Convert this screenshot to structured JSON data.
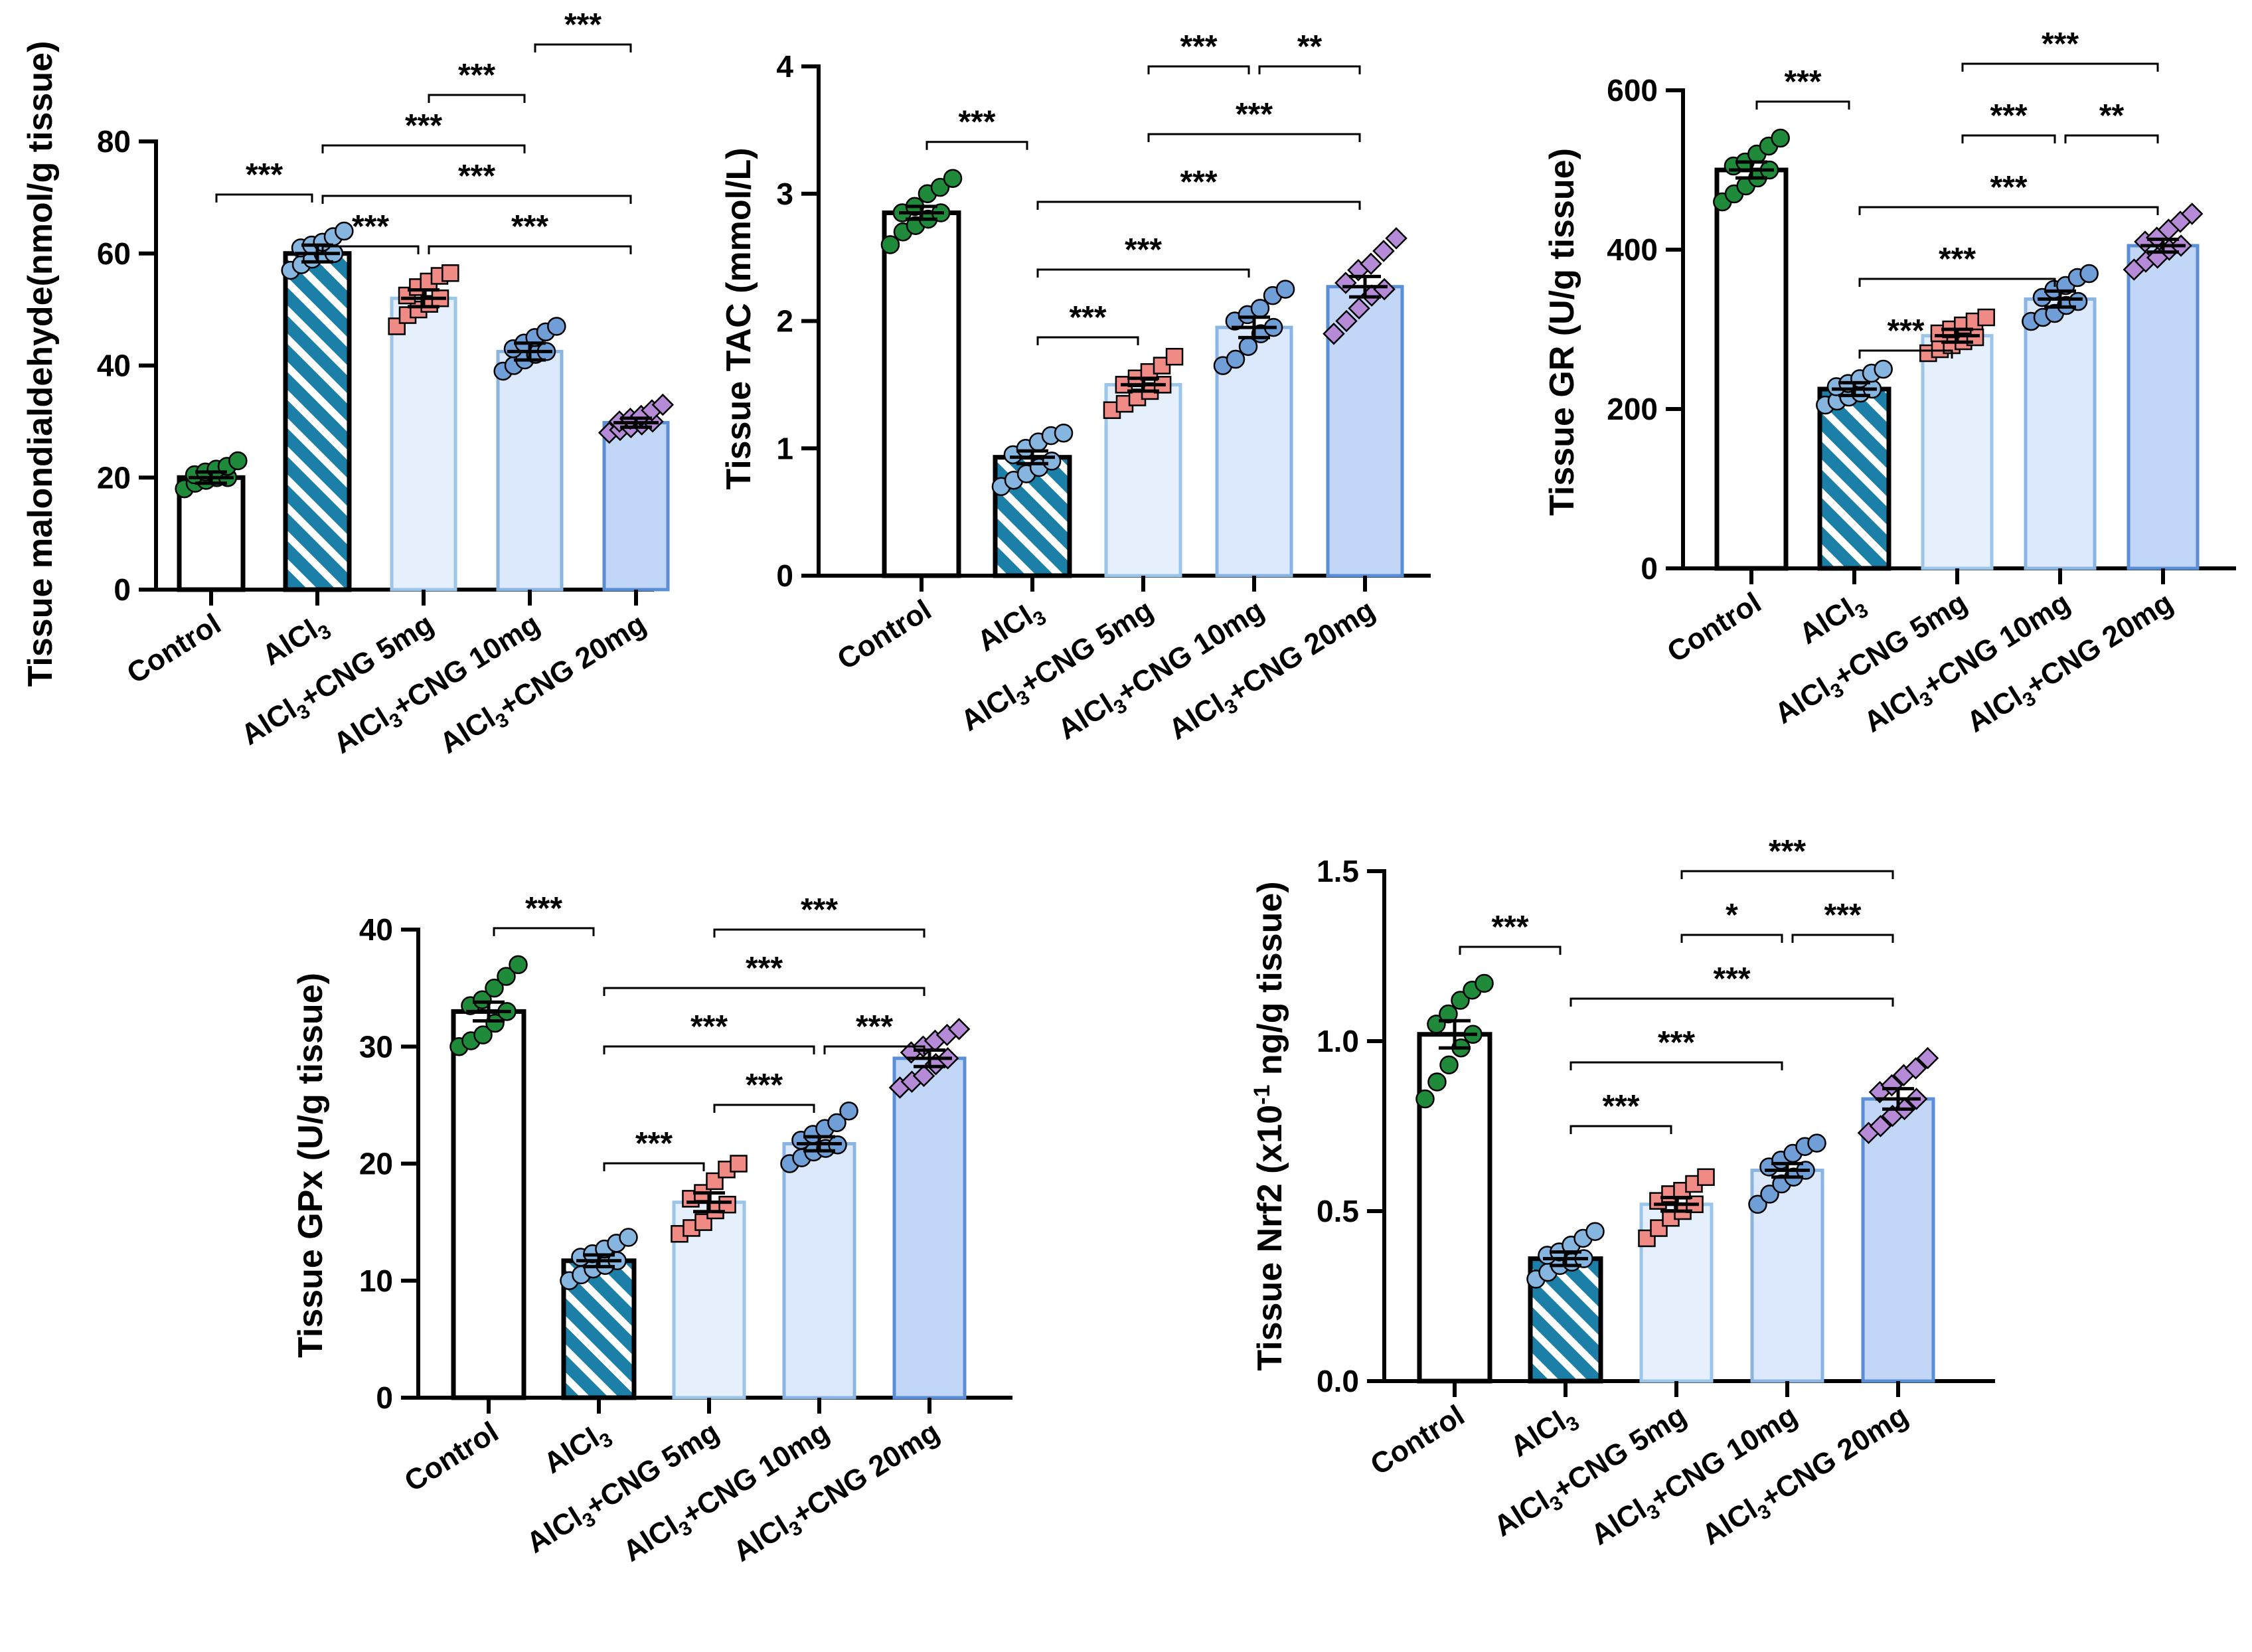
{
  "chart_data": [
    {
      "type": "bar",
      "ylabel": "Tissue malondialdehyde(nmol/g tissue)",
      "ylim": [
        0,
        80
      ],
      "yticks": [
        0,
        20,
        40,
        60,
        80
      ],
      "categories": [
        "Control",
        "AlCl3",
        "AlCl3+CNG 5mg",
        "AlCl3+CNG 10mg",
        "AlCl3+CNG 20mg"
      ],
      "values": [
        20,
        60,
        52,
        42.5,
        29.8
      ],
      "errors": [
        1.0,
        1.5,
        1.5,
        1.5,
        0.8
      ],
      "points": [
        [
          18,
          19,
          19.5,
          20,
          20,
          20.5,
          21,
          21.5,
          22,
          23
        ],
        [
          57,
          58,
          59,
          60,
          60,
          61,
          61.5,
          62,
          63,
          64
        ],
        [
          47,
          49,
          50,
          51,
          52,
          52.5,
          54,
          55,
          56,
          56.5
        ],
        [
          39,
          40,
          41,
          42,
          42.5,
          43,
          44,
          45,
          46,
          47
        ],
        [
          28,
          28.5,
          29,
          29.5,
          30,
          30,
          30.5,
          31,
          32,
          33
        ]
      ],
      "significance": [
        {
          "from": 0,
          "to": 1,
          "label": "***"
        },
        {
          "from": 1,
          "to": 2,
          "label": "***"
        },
        {
          "from": 2,
          "to": 4,
          "label": "***"
        },
        {
          "from": 1,
          "to": 4,
          "label": "***"
        },
        {
          "from": 1,
          "to": 3,
          "label": "***"
        },
        {
          "from": 2,
          "to": 3,
          "label": "***"
        },
        {
          "from": 3,
          "to": 4,
          "label": "***"
        }
      ]
    },
    {
      "type": "bar",
      "ylabel": "Tissue TAC (mmol/L)",
      "ylim": [
        0,
        4
      ],
      "yticks": [
        0,
        1,
        2,
        3,
        4
      ],
      "categories": [
        "Control",
        "AlCl3",
        "AlCl3+CNG 5mg",
        "AlCl3+CNG 10mg",
        "AlCl3+CNG 20mg"
      ],
      "values": [
        2.85,
        0.93,
        1.5,
        1.95,
        2.27
      ],
      "errors": [
        0.05,
        0.05,
        0.05,
        0.08,
        0.08
      ],
      "points": [
        [
          2.6,
          2.7,
          2.75,
          2.8,
          2.85,
          2.85,
          2.9,
          3.0,
          3.05,
          3.12
        ],
        [
          0.7,
          0.75,
          0.8,
          0.85,
          0.9,
          0.95,
          1.0,
          1.05,
          1.1,
          1.12
        ],
        [
          1.3,
          1.35,
          1.4,
          1.45,
          1.5,
          1.5,
          1.55,
          1.6,
          1.65,
          1.72
        ],
        [
          1.65,
          1.7,
          1.8,
          1.9,
          1.95,
          2.0,
          2.05,
          2.1,
          2.2,
          2.25
        ],
        [
          1.9,
          2.0,
          2.1,
          2.2,
          2.25,
          2.3,
          2.4,
          2.45,
          2.55,
          2.65
        ]
      ],
      "significance": [
        {
          "from": 0,
          "to": 1,
          "label": "***"
        },
        {
          "from": 2,
          "to": 4,
          "label": "***"
        },
        {
          "from": 2,
          "to": 3,
          "label": "***"
        },
        {
          "from": 3,
          "to": 4,
          "label": "**"
        },
        {
          "from": 1,
          "to": 4,
          "label": "***"
        },
        {
          "from": 1,
          "to": 3,
          "label": "***"
        },
        {
          "from": 1,
          "to": 2,
          "label": "***"
        }
      ]
    },
    {
      "type": "bar",
      "ylabel": "Tissue GR (U/g tissue)",
      "ylim": [
        0,
        600
      ],
      "yticks": [
        0,
        200,
        400,
        600
      ],
      "categories": [
        "Control",
        "AlCl3",
        "AlCl3+CNG 5mg",
        "AlCl3+CNG 10mg",
        "AlCl3+CNG 20mg"
      ],
      "values": [
        500,
        225,
        292,
        338,
        405
      ],
      "errors": [
        10,
        8,
        8,
        10,
        8
      ],
      "points": [
        [
          460,
          470,
          480,
          490,
          500,
          505,
          510,
          520,
          530,
          540
        ],
        [
          205,
          210,
          215,
          220,
          225,
          228,
          232,
          238,
          245,
          250
        ],
        [
          270,
          275,
          280,
          285,
          290,
          295,
          300,
          305,
          310,
          315
        ],
        [
          310,
          315,
          320,
          330,
          335,
          340,
          350,
          355,
          365,
          370
        ],
        [
          375,
          385,
          390,
          400,
          405,
          410,
          415,
          425,
          435,
          445
        ]
      ],
      "significance": [
        {
          "from": 0,
          "to": 1,
          "label": "***"
        },
        {
          "from": 2,
          "to": 4,
          "label": "***"
        },
        {
          "from": 2,
          "to": 3,
          "label": "***"
        },
        {
          "from": 3,
          "to": 4,
          "label": "**"
        },
        {
          "from": 1,
          "to": 4,
          "label": "***"
        },
        {
          "from": 1,
          "to": 3,
          "label": "***"
        },
        {
          "from": 1,
          "to": 2,
          "label": "***"
        }
      ]
    },
    {
      "type": "bar",
      "ylabel": "Tissue GPx (U/g tissue)",
      "ylim": [
        0,
        40
      ],
      "yticks": [
        0,
        10,
        20,
        30,
        40
      ],
      "categories": [
        "Control",
        "AlCl3",
        "AlCl3+CNG 5mg",
        "AlCl3+CNG 10mg",
        "AlCl3+CNG 20mg"
      ],
      "values": [
        33,
        11.7,
        16.7,
        21.7,
        29
      ],
      "errors": [
        0.8,
        0.5,
        0.8,
        0.6,
        0.7
      ],
      "points": [
        [
          30,
          30.5,
          31,
          32,
          33,
          33.5,
          34,
          35,
          36,
          37
        ],
        [
          10,
          10.5,
          11,
          11.3,
          11.7,
          12,
          12.3,
          12.7,
          13.2,
          13.7
        ],
        [
          14,
          14.5,
          15,
          16,
          16.5,
          17,
          17.5,
          18.5,
          19.5,
          20
        ],
        [
          20,
          20.5,
          21,
          21.3,
          21.6,
          22,
          22.5,
          23,
          23.5,
          24.5
        ],
        [
          26.5,
          27,
          27.5,
          28.5,
          29,
          29.5,
          30,
          30.5,
          31,
          31.5
        ]
      ],
      "significance": [
        {
          "from": 0,
          "to": 1,
          "label": "***"
        },
        {
          "from": 2,
          "to": 4,
          "label": "***"
        },
        {
          "from": 1,
          "to": 4,
          "label": "***"
        },
        {
          "from": 1,
          "to": 3,
          "label": "***"
        },
        {
          "from": 3,
          "to": 4,
          "label": "***"
        },
        {
          "from": 2,
          "to": 3,
          "label": "***"
        },
        {
          "from": 1,
          "to": 2,
          "label": "***"
        }
      ]
    },
    {
      "type": "bar",
      "ylabel": "Tissue Nrf2 (x10⁻¹ ng/g tissue)",
      "ylim": [
        0,
        1.5
      ],
      "yticks": [
        "0.0",
        "0.5",
        "1.0",
        "1.5"
      ],
      "categories": [
        "Control",
        "AlCl3",
        "AlCl3+CNG 5mg",
        "AlCl3+CNG 10mg",
        "AlCl3+CNG 20mg"
      ],
      "values": [
        1.02,
        0.36,
        0.52,
        0.62,
        0.83
      ],
      "errors": [
        0.04,
        0.02,
        0.02,
        0.02,
        0.03
      ],
      "points": [
        [
          0.83,
          0.88,
          0.93,
          0.98,
          1.02,
          1.05,
          1.08,
          1.12,
          1.15,
          1.17
        ],
        [
          0.3,
          0.32,
          0.34,
          0.35,
          0.36,
          0.37,
          0.38,
          0.4,
          0.42,
          0.44
        ],
        [
          0.42,
          0.45,
          0.48,
          0.5,
          0.52,
          0.53,
          0.55,
          0.56,
          0.58,
          0.6
        ],
        [
          0.52,
          0.55,
          0.58,
          0.6,
          0.62,
          0.63,
          0.65,
          0.67,
          0.69,
          0.7
        ],
        [
          0.73,
          0.75,
          0.78,
          0.8,
          0.83,
          0.85,
          0.87,
          0.9,
          0.92,
          0.95
        ]
      ],
      "significance": [
        {
          "from": 0,
          "to": 1,
          "label": "***"
        },
        {
          "from": 2,
          "to": 4,
          "label": "***"
        },
        {
          "from": 2,
          "to": 3,
          "label": "*"
        },
        {
          "from": 3,
          "to": 4,
          "label": "***"
        },
        {
          "from": 1,
          "to": 4,
          "label": "***"
        },
        {
          "from": 1,
          "to": 3,
          "label": "***"
        },
        {
          "from": 1,
          "to": 2,
          "label": "***"
        }
      ]
    }
  ],
  "colors": {
    "bar_fills": [
      "#ffffff",
      "#1b7fa8",
      "#e6effc",
      "#dce8fb",
      "#c2d6f8"
    ],
    "bar_strokes": [
      "#000000",
      "#000000",
      "#9cc5ea",
      "#8ab5e2",
      "#5a8ed6"
    ],
    "hatch_stripe": "#ffffff",
    "point_fills": [
      "#1f8a3a",
      "#86b5e0",
      "#f08a84",
      "#6f9fd6",
      "#b58ad6"
    ]
  }
}
